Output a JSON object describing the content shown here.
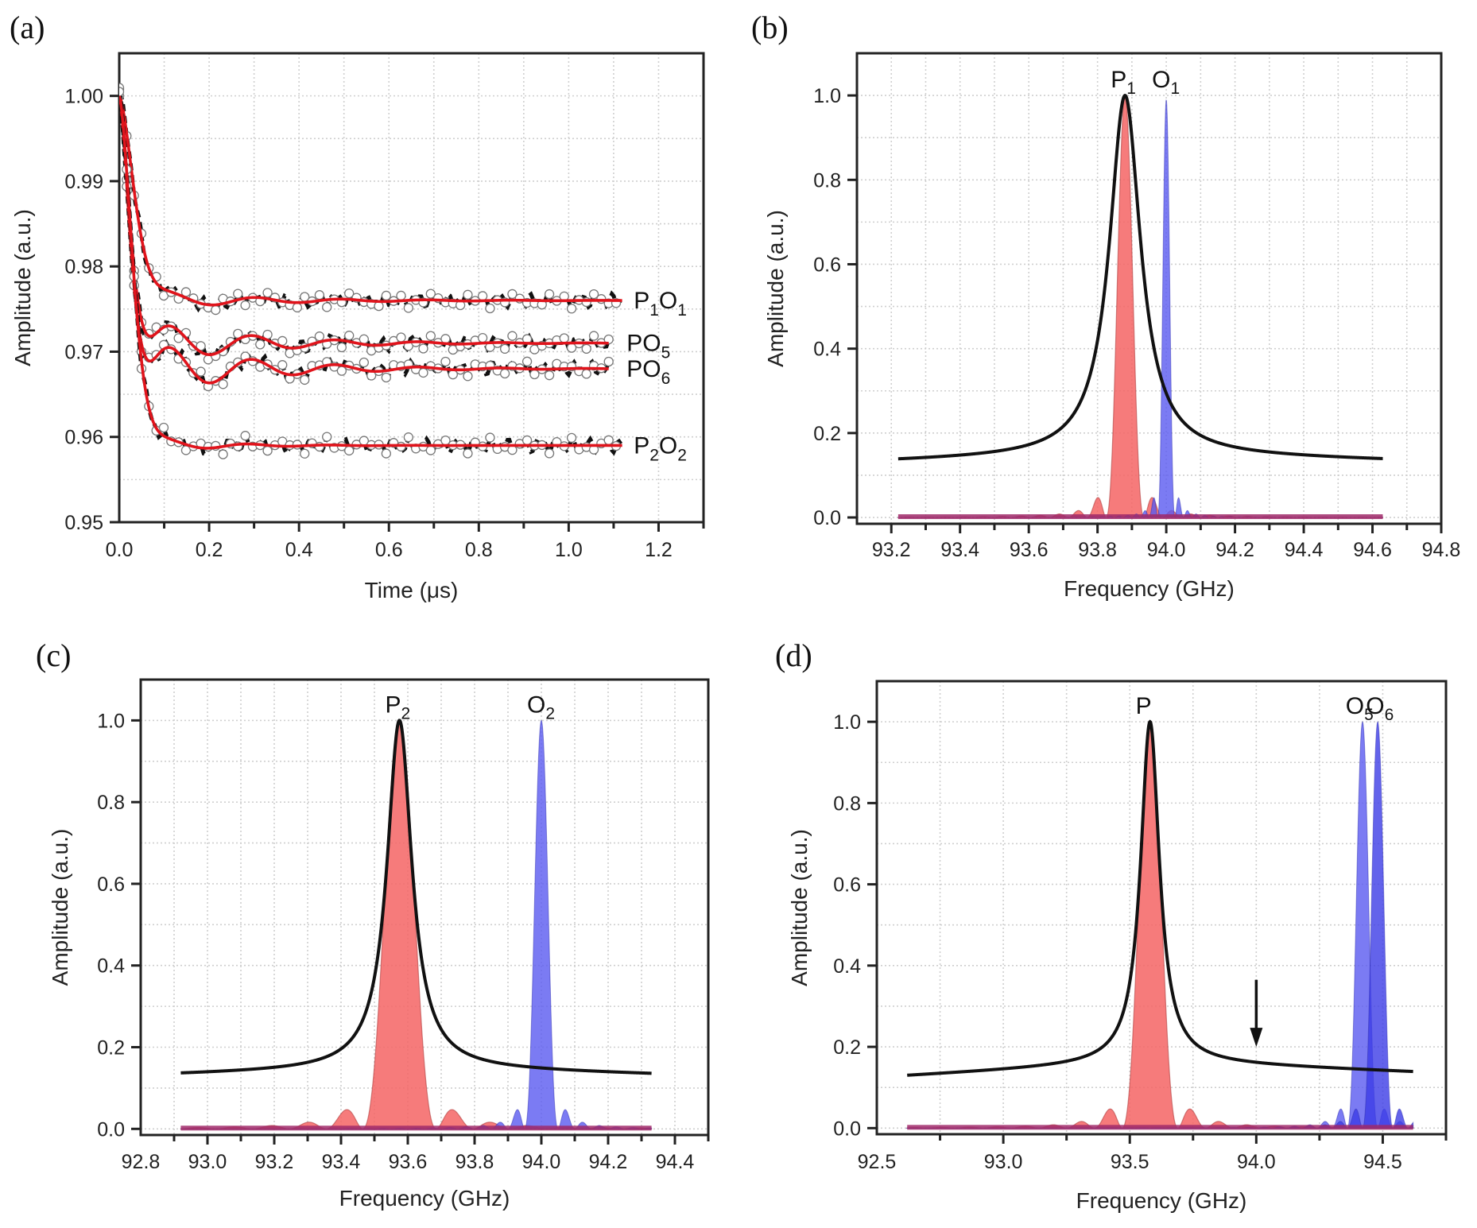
{
  "chart_data": [
    {
      "panel": "(a)",
      "type": "line",
      "title": "",
      "xlabel": "Time (μs)",
      "ylabel": "Amplitude (a.u.)",
      "xlim": [
        0.0,
        1.3
      ],
      "ylim": [
        0.95,
        1.005
      ],
      "xticks": [
        "0.0",
        "0.2",
        "0.4",
        "0.6",
        "0.8",
        "1.0",
        "1.2"
      ],
      "yticks": [
        "0.95",
        "0.96",
        "0.97",
        "0.98",
        "0.99",
        "1.00"
      ],
      "grid": true,
      "fit_color": "#e0141c",
      "data_color": "#111111",
      "series": [
        {
          "name": "P1O1",
          "label_main": "P",
          "label_sub1": "1",
          "label_main2": "O",
          "label_sub2": "1",
          "start": 1.0,
          "final": 0.976,
          "decay": 0.045,
          "osc_amp": 0.0012,
          "osc_period": 0.19,
          "osc_decay": 0.25,
          "t_end": 1.12
        },
        {
          "name": "PO5",
          "label_main": "PO",
          "label_sub1": "5",
          "start": 1.0,
          "final": 0.971,
          "decay": 0.03,
          "osc_amp": 0.0034,
          "osc_period": 0.185,
          "osc_decay": 0.22,
          "t_end": 1.09
        },
        {
          "name": "PO6",
          "label_main": "PO",
          "label_sub1": "6",
          "start": 1.0,
          "final": 0.968,
          "decay": 0.03,
          "osc_amp": 0.0042,
          "osc_period": 0.185,
          "osc_decay": 0.22,
          "t_end": 1.09
        },
        {
          "name": "P2O2",
          "label_main": "P",
          "label_sub1": "2",
          "label_main2": "O",
          "label_sub2": "2",
          "start": 1.0,
          "final": 0.959,
          "decay": 0.04,
          "osc_amp": 0.0012,
          "osc_period": 0.18,
          "osc_decay": 0.15,
          "t_end": 1.12
        }
      ]
    },
    {
      "panel": "(b)",
      "type": "area",
      "xlabel": "Frequency (GHz)",
      "ylabel": "Amplitude (a.u.)",
      "xlim": [
        93.1,
        94.8
      ],
      "ylim": [
        -0.015,
        1.1
      ],
      "xticks": [
        "93.2",
        "93.4",
        "93.6",
        "93.8",
        "94.0",
        "94.2",
        "94.4",
        "94.6",
        "94.8"
      ],
      "yticks": [
        "0.0",
        "0.2",
        "0.4",
        "0.6",
        "0.8",
        "1.0"
      ],
      "grid": true,
      "curve_range": [
        93.22,
        94.63
      ],
      "lorentzian": {
        "name": "black envelope",
        "center": 93.88,
        "hwhm": 0.055,
        "baseline_left": 0.14,
        "baseline_right": 0.142,
        "baseline_mid": 0.155,
        "color": "#111111"
      },
      "pump_sinc": {
        "name": "P1",
        "center": 93.88,
        "lobe_spacing": 0.055,
        "height": 1.0,
        "color": "#f46464"
      },
      "probe_sinc": [
        {
          "name": "O1",
          "center": 94.0,
          "lobe_spacing": 0.025,
          "height": 0.99,
          "color": "#5a5af0"
        }
      ],
      "annotations": [
        {
          "main": "P",
          "sub": "1",
          "x": 93.88
        },
        {
          "main": "O",
          "sub": "1",
          "x": 94.0
        }
      ]
    },
    {
      "panel": "(c)",
      "type": "area",
      "xlabel": "Frequency (GHz)",
      "ylabel": "Amplitude (a.u.)",
      "xlim": [
        92.8,
        94.5
      ],
      "ylim": [
        -0.015,
        1.1
      ],
      "xticks": [
        "92.8",
        "93.0",
        "93.2",
        "93.4",
        "93.6",
        "93.8",
        "94.0",
        "94.2",
        "94.4"
      ],
      "yticks": [
        "0.0",
        "0.2",
        "0.4",
        "0.6",
        "0.8",
        "1.0"
      ],
      "grid": true,
      "curve_range": [
        92.92,
        94.33
      ],
      "lorentzian": {
        "name": "black envelope",
        "center": 93.575,
        "hwhm": 0.045,
        "baseline_left": 0.14,
        "baseline_right": 0.14,
        "baseline_mid": 0.155,
        "color": "#111111"
      },
      "pump_sinc": {
        "name": "P2",
        "center": 93.575,
        "lobe_spacing": 0.11,
        "height": 1.0,
        "color": "#f46464"
      },
      "probe_sinc": [
        {
          "name": "O2",
          "center": 94.0,
          "lobe_spacing": 0.05,
          "height": 1.0,
          "color": "#5a5af0"
        }
      ],
      "annotations": [
        {
          "main": "P",
          "sub": "2",
          "x": 93.575
        },
        {
          "main": "O",
          "sub": "2",
          "x": 94.0
        }
      ]
    },
    {
      "panel": "(d)",
      "type": "area",
      "xlabel": "Frequency (GHz)",
      "ylabel": "Amplitude (a.u.)",
      "xlim": [
        92.5,
        94.75
      ],
      "ylim": [
        -0.015,
        1.1
      ],
      "xticks": [
        "92.5",
        "93.0",
        "93.5",
        "94.0",
        "94.5"
      ],
      "yticks": [
        "0.0",
        "0.2",
        "0.4",
        "0.6",
        "0.8",
        "1.0"
      ],
      "grid": true,
      "curve_range": [
        92.62,
        94.62
      ],
      "lorentzian": {
        "name": "black envelope",
        "center": 93.58,
        "hwhm": 0.045,
        "baseline_left": 0.135,
        "baseline_right": 0.145,
        "baseline_mid": 0.17,
        "color": "#111111"
      },
      "pump_sinc": {
        "name": "P",
        "center": 93.58,
        "lobe_spacing": 0.11,
        "height": 1.0,
        "color": "#f46464"
      },
      "probe_sinc": [
        {
          "name": "O5",
          "center": 94.42,
          "lobe_spacing": 0.06,
          "height": 1.0,
          "color": "#5a5af0"
        },
        {
          "name": "O6",
          "center": 94.48,
          "lobe_spacing": 0.06,
          "height": 1.0,
          "color": "#3c3ce6"
        }
      ],
      "annotations": [
        {
          "main": "P",
          "sub": "",
          "x": 93.58
        },
        {
          "main": "O",
          "sub": "5",
          "x": 94.41
        },
        {
          "main": "O",
          "sub": "6",
          "x": 94.49
        }
      ],
      "arrow": {
        "x": 94.0,
        "y_from": 0.365,
        "y_to": 0.2
      }
    }
  ]
}
